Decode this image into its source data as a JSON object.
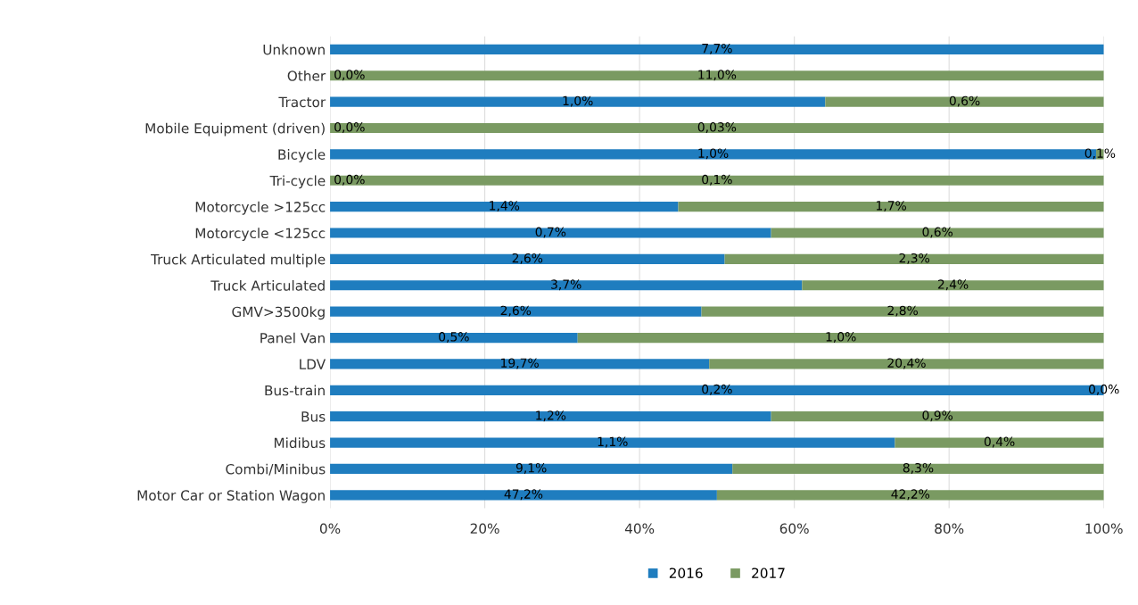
{
  "chart_data": {
    "type": "bar",
    "orientation": "horizontal",
    "stacked": true,
    "categories": [
      "Unknown",
      "Other",
      "Tractor",
      "Mobile Equipment (driven)",
      "Bicycle",
      "Tri-cycle",
      "Motorcycle >125cc",
      "Motorcycle <125cc",
      "Truck Articulated multiple",
      "Truck Articulated",
      "GMV>3500kg",
      "Panel Van",
      "LDV",
      "Bus-train",
      "Bus",
      "Midibus",
      "Combi/Minibus",
      "Motor Car or Station Wagon"
    ],
    "series": [
      {
        "name": "2016",
        "color": "#1f7dbf",
        "values": [
          100,
          0,
          64,
          0,
          99,
          0,
          45,
          57,
          51,
          61,
          48,
          32,
          49,
          100,
          57,
          73,
          52,
          50
        ]
      },
      {
        "name": "2017",
        "color": "#7a9a62",
        "values": [
          0,
          100,
          36,
          100,
          1,
          100,
          55,
          43,
          49,
          39,
          52,
          68,
          51,
          0,
          43,
          27,
          48,
          50
        ]
      }
    ],
    "annotations": [
      {
        "text": "7,7%",
        "x": 50,
        "y": "Unknown"
      },
      {
        "text": "0,0%",
        "x": 0,
        "y": "Other"
      },
      {
        "text": "11,0%",
        "x": 50,
        "y": "Other"
      },
      {
        "text": "1,0%",
        "x": 32,
        "y": "Tractor"
      },
      {
        "text": "0,6%",
        "x": 82,
        "y": "Tractor"
      },
      {
        "text": "0,0%",
        "x": 0,
        "y": "Mobile Equipment (driven)"
      },
      {
        "text": "0,03%",
        "x": 50,
        "y": "Mobile Equipment (driven)"
      },
      {
        "text": "1,0%",
        "x": 49.5,
        "y": "Bicycle"
      },
      {
        "text": "0,1%",
        "x": 99.5,
        "y": "Bicycle"
      },
      {
        "text": "0,0%",
        "x": 0,
        "y": "Tri-cycle"
      },
      {
        "text": "0,1%",
        "x": 50,
        "y": "Tri-cycle"
      },
      {
        "text": "1,4%",
        "x": 22.5,
        "y": "Motorcycle >125cc"
      },
      {
        "text": "1,7%",
        "x": 72.5,
        "y": "Motorcycle >125cc"
      },
      {
        "text": "0,7%",
        "x": 28.5,
        "y": "Motorcycle <125cc"
      },
      {
        "text": "0,6%",
        "x": 78.5,
        "y": "Motorcycle <125cc"
      },
      {
        "text": "2,6%",
        "x": 25.5,
        "y": "Truck Articulated multiple"
      },
      {
        "text": "2,3%",
        "x": 75.5,
        "y": "Truck Articulated multiple"
      },
      {
        "text": "3,7%",
        "x": 30.5,
        "y": "Truck Articulated"
      },
      {
        "text": "2,4%",
        "x": 80.5,
        "y": "Truck Articulated"
      },
      {
        "text": "2,6%",
        "x": 24,
        "y": "GMV>3500kg"
      },
      {
        "text": "2,8%",
        "x": 74,
        "y": "GMV>3500kg"
      },
      {
        "text": "0,5%",
        "x": 16,
        "y": "Panel Van"
      },
      {
        "text": "1,0%",
        "x": 66,
        "y": "Panel Van"
      },
      {
        "text": "19,7%",
        "x": 24.5,
        "y": "LDV"
      },
      {
        "text": "20,4%",
        "x": 74.5,
        "y": "LDV"
      },
      {
        "text": "0,2%",
        "x": 50,
        "y": "Bus-train"
      },
      {
        "text": "0,0%",
        "x": 100,
        "y": "Bus-train"
      },
      {
        "text": "1,2%",
        "x": 28.5,
        "y": "Bus"
      },
      {
        "text": "0,9%",
        "x": 78.5,
        "y": "Bus"
      },
      {
        "text": "1,1%",
        "x": 36.5,
        "y": "Midibus"
      },
      {
        "text": "0,4%",
        "x": 86.5,
        "y": "Midibus"
      },
      {
        "text": "9,1%",
        "x": 26,
        "y": "Combi/Minibus"
      },
      {
        "text": "8,3%",
        "x": 76,
        "y": "Combi/Minibus"
      },
      {
        "text": "47,2%",
        "x": 25,
        "y": "Motor Car or Station Wagon"
      },
      {
        "text": "42,2%",
        "x": 75,
        "y": "Motor Car or Station Wagon"
      }
    ],
    "xlim": [
      0,
      100
    ],
    "xticks": [
      {
        "value": 0,
        "label": "0%"
      },
      {
        "value": 20,
        "label": "20%"
      },
      {
        "value": 40,
        "label": "40%"
      },
      {
        "value": 60,
        "label": "60%"
      },
      {
        "value": 80,
        "label": "80%"
      },
      {
        "value": 100,
        "label": "100%"
      }
    ],
    "grid": "x",
    "legend": "bottom"
  }
}
